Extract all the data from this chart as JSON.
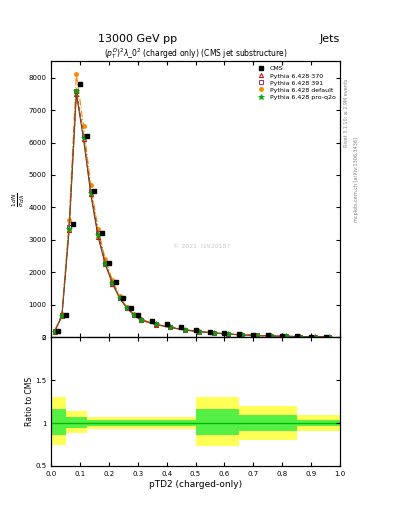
{
  "title_top": "13000 GeV pp",
  "title_right": "Jets",
  "plot_title": "$(p_T^D)^2\\lambda\\_0^2$ (charged only) (CMS jet substructure)",
  "xlabel": "pTD2 (charged-only)",
  "ylabel": "$\\frac{1}{\\sigma}\\frac{dN}{d\\lambda}$",
  "right_label_top": "Rivet 3.1.10; ≥ 2.9M events",
  "right_label_bot": "mcplots.cern.ch [arXiv:1306.3436]",
  "watermark": "© 2021  I1920187",
  "xlim": [
    0.0,
    1.0
  ],
  "ylim_main": [
    0,
    8500
  ],
  "ylim_ratio": [
    0.5,
    2.0
  ],
  "yticks_main": [
    0,
    1000,
    2000,
    3000,
    4000,
    5000,
    6000,
    7000,
    8000
  ],
  "ytick_labels_main": [
    "0",
    "1000",
    "2000",
    "3000",
    "4000",
    "5000",
    "6000",
    "7000",
    "8000"
  ],
  "yticks_ratio": [
    0.5,
    1.0,
    1.5,
    2.0
  ],
  "xticks": [
    0.0,
    0.1,
    0.2,
    0.3,
    0.4,
    0.5,
    0.6,
    0.7,
    0.8,
    0.9,
    1.0
  ],
  "cms_x": [
    0.025,
    0.05,
    0.075,
    0.1,
    0.125,
    0.15,
    0.175,
    0.2,
    0.225,
    0.25,
    0.275,
    0.3,
    0.35,
    0.4,
    0.45,
    0.5,
    0.55,
    0.6,
    0.65,
    0.7,
    0.75,
    0.8,
    0.85,
    0.9,
    0.95
  ],
  "cms_y": [
    200,
    700,
    3500,
    7800,
    6200,
    4500,
    3200,
    2300,
    1700,
    1200,
    900,
    700,
    500,
    400,
    300,
    220,
    170,
    130,
    100,
    75,
    55,
    40,
    30,
    20,
    15
  ],
  "p370_x": [
    0.0125,
    0.0375,
    0.0625,
    0.0875,
    0.1125,
    0.1375,
    0.1625,
    0.1875,
    0.2125,
    0.2375,
    0.2625,
    0.2875,
    0.3125,
    0.3625,
    0.4125,
    0.4625,
    0.5125,
    0.5625,
    0.6125,
    0.6625,
    0.7125,
    0.7625,
    0.8125,
    0.8625,
    0.9125,
    0.9625
  ],
  "p370_y": [
    170,
    650,
    3300,
    7500,
    6100,
    4400,
    3100,
    2250,
    1650,
    1200,
    890,
    680,
    520,
    390,
    300,
    220,
    170,
    130,
    95,
    70,
    52,
    38,
    27,
    19,
    13,
    8
  ],
  "p391_x": [
    0.0125,
    0.0375,
    0.0625,
    0.0875,
    0.1125,
    0.1375,
    0.1625,
    0.1875,
    0.2125,
    0.2375,
    0.2625,
    0.2875,
    0.3125,
    0.3625,
    0.4125,
    0.4625,
    0.5125,
    0.5625,
    0.6125,
    0.6625,
    0.7125,
    0.7625,
    0.8125,
    0.8625,
    0.9125,
    0.9625
  ],
  "p391_y": [
    180,
    680,
    3400,
    7600,
    6200,
    4500,
    3200,
    2300,
    1680,
    1220,
    910,
    700,
    530,
    400,
    310,
    230,
    175,
    135,
    100,
    73,
    54,
    40,
    29,
    21,
    14,
    9
  ],
  "pdef_x": [
    0.0125,
    0.0375,
    0.0625,
    0.0875,
    0.1125,
    0.1375,
    0.1625,
    0.1875,
    0.2125,
    0.2375,
    0.2625,
    0.2875,
    0.3125,
    0.3625,
    0.4125,
    0.4625,
    0.5125,
    0.5625,
    0.6125,
    0.6625,
    0.7125,
    0.7625,
    0.8125,
    0.8625,
    0.9125,
    0.9625
  ],
  "pdef_y": [
    200,
    720,
    3600,
    8100,
    6500,
    4700,
    3350,
    2400,
    1750,
    1270,
    940,
    720,
    550,
    410,
    315,
    235,
    180,
    138,
    102,
    76,
    56,
    41,
    30,
    22,
    15,
    9
  ],
  "pq2o_x": [
    0.0125,
    0.0375,
    0.0625,
    0.0875,
    0.1125,
    0.1375,
    0.1625,
    0.1875,
    0.2125,
    0.2375,
    0.2625,
    0.2875,
    0.3125,
    0.3625,
    0.4125,
    0.4625,
    0.5125,
    0.5625,
    0.6125,
    0.6625,
    0.7125,
    0.7625,
    0.8125,
    0.8625,
    0.9125,
    0.9625
  ],
  "pq2o_y": [
    175,
    660,
    3350,
    7600,
    6150,
    4450,
    3150,
    2270,
    1660,
    1210,
    900,
    690,
    525,
    395,
    305,
    225,
    172,
    132,
    98,
    72,
    53,
    39,
    28,
    20,
    14,
    8
  ],
  "color_cms": "#000000",
  "color_p370": "#cc0000",
  "color_p391": "#993366",
  "color_pdef": "#ff8800",
  "color_pq2o": "#00aa00",
  "ratio_yellow_x": [
    0.0,
    0.05,
    0.125,
    0.5,
    0.65,
    0.85
  ],
  "ratio_yellow_w": [
    0.05,
    0.075,
    0.375,
    0.15,
    0.2,
    0.15
  ],
  "ratio_yellow_lo": [
    0.74,
    0.88,
    0.93,
    0.73,
    0.8,
    0.91
  ],
  "ratio_yellow_hi": [
    1.3,
    1.14,
    1.07,
    1.3,
    1.2,
    1.09
  ],
  "ratio_green_x": [
    0.0,
    0.05,
    0.125,
    0.5,
    0.65,
    0.85
  ],
  "ratio_green_w": [
    0.05,
    0.075,
    0.375,
    0.15,
    0.2,
    0.15
  ],
  "ratio_green_lo": [
    0.86,
    0.94,
    0.97,
    0.86,
    0.91,
    0.96
  ],
  "ratio_green_hi": [
    1.16,
    1.07,
    1.03,
    1.16,
    1.09,
    1.04
  ]
}
